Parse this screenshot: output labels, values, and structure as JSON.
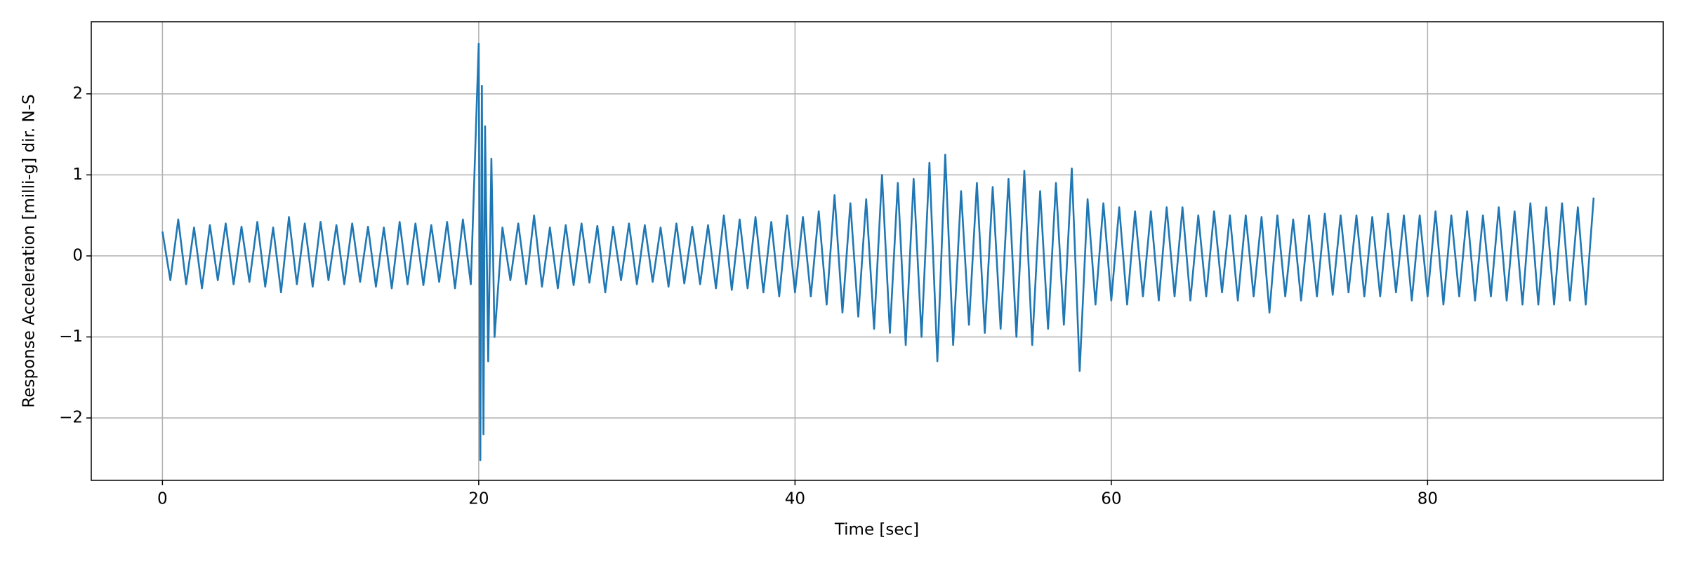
{
  "chart_data": {
    "type": "line",
    "xlabel": "Time [sec]",
    "ylabel": "Response Acceleration [milli-g] dir. N-S",
    "xlim": [
      -4.5,
      94.9
    ],
    "ylim": [
      -2.77,
      2.89
    ],
    "xticks": [
      0,
      20,
      40,
      60,
      80
    ],
    "yticks": [
      {
        "value": -2,
        "label": "−2"
      },
      {
        "value": -1,
        "label": "−1"
      },
      0,
      1,
      2
    ],
    "grid": true,
    "series": [
      {
        "color": "#1f77b4",
        "x": [
          0,
          0.5,
          1,
          1.5,
          2,
          2.5,
          3,
          3.5,
          4,
          4.5,
          5,
          5.5,
          6,
          6.5,
          7,
          7.5,
          8,
          8.5,
          9,
          9.5,
          10,
          10.5,
          11,
          11.5,
          12,
          12.5,
          13,
          13.5,
          14,
          14.5,
          15,
          15.5,
          16,
          16.5,
          17,
          17.5,
          18,
          18.5,
          19,
          19.5,
          20,
          20.1,
          20.2,
          20.3,
          20.4,
          20.6,
          20.8,
          21,
          21.5,
          22,
          22.5,
          23,
          23.5,
          24,
          24.5,
          25,
          25.5,
          26,
          26.5,
          27,
          27.5,
          28,
          28.5,
          29,
          29.5,
          30,
          30.5,
          31,
          31.5,
          32,
          32.5,
          33,
          33.5,
          34,
          34.5,
          35,
          35.5,
          36,
          36.5,
          37,
          37.5,
          38,
          38.5,
          39,
          39.5,
          40,
          40.5,
          41,
          41.5,
          42,
          42.5,
          43,
          43.5,
          44,
          44.5,
          45,
          45.5,
          46,
          46.5,
          47,
          47.5,
          48,
          48.5,
          49,
          49.5,
          50,
          50.5,
          51,
          51.5,
          52,
          52.5,
          53,
          53.5,
          54,
          54.5,
          55,
          55.5,
          56,
          56.5,
          57,
          57.5,
          58,
          58.5,
          59,
          59.5,
          60,
          60.5,
          61,
          61.5,
          62,
          62.5,
          63,
          63.5,
          64,
          64.5,
          65,
          65.5,
          66,
          66.5,
          67,
          67.5,
          68,
          68.5,
          69,
          69.5,
          70,
          70.5,
          71,
          71.5,
          72,
          72.5,
          73,
          73.5,
          74,
          74.5,
          75,
          75.5,
          76,
          76.5,
          77,
          77.5,
          78,
          78.5,
          79,
          79.5,
          80,
          80.5,
          81,
          81.5,
          82,
          82.5,
          83,
          83.5,
          84,
          84.5,
          85,
          85.5,
          86,
          86.5,
          87,
          87.5,
          88,
          88.5,
          89,
          89.5,
          90,
          90.5
        ],
        "values": [
          0.3,
          -0.3,
          0.45,
          -0.35,
          0.35,
          -0.4,
          0.38,
          -0.3,
          0.4,
          -0.35,
          0.36,
          -0.32,
          0.42,
          -0.38,
          0.35,
          -0.45,
          0.48,
          -0.35,
          0.4,
          -0.38,
          0.42,
          -0.3,
          0.38,
          -0.35,
          0.4,
          -0.32,
          0.36,
          -0.38,
          0.35,
          -0.4,
          0.42,
          -0.35,
          0.4,
          -0.36,
          0.38,
          -0.32,
          0.42,
          -0.4,
          0.45,
          -0.35,
          2.62,
          -2.52,
          2.1,
          -2.2,
          1.6,
          -1.3,
          1.2,
          -1.0,
          0.35,
          -0.3,
          0.4,
          -0.35,
          0.5,
          -0.38,
          0.35,
          -0.4,
          0.38,
          -0.36,
          0.4,
          -0.33,
          0.37,
          -0.45,
          0.36,
          -0.3,
          0.4,
          -0.35,
          0.38,
          -0.32,
          0.35,
          -0.38,
          0.4,
          -0.34,
          0.36,
          -0.35,
          0.38,
          -0.4,
          0.5,
          -0.42,
          0.45,
          -0.4,
          0.48,
          -0.45,
          0.42,
          -0.5,
          0.5,
          -0.45,
          0.48,
          -0.5,
          0.55,
          -0.6,
          0.75,
          -0.7,
          0.65,
          -0.75,
          0.7,
          -0.9,
          1.0,
          -0.95,
          0.9,
          -1.1,
          0.95,
          -1.0,
          1.15,
          -1.3,
          1.25,
          -1.1,
          0.8,
          -0.85,
          0.9,
          -0.95,
          0.85,
          -0.9,
          0.95,
          -1.0,
          1.05,
          -1.1,
          0.8,
          -0.9,
          0.9,
          -0.85,
          1.08,
          -1.42,
          0.7,
          -0.6,
          0.65,
          -0.55,
          0.6,
          -0.6,
          0.55,
          -0.5,
          0.55,
          -0.55,
          0.6,
          -0.5,
          0.6,
          -0.55,
          0.5,
          -0.5,
          0.55,
          -0.45,
          0.5,
          -0.55,
          0.5,
          -0.5,
          0.48,
          -0.7,
          0.5,
          -0.5,
          0.45,
          -0.55,
          0.5,
          -0.5,
          0.52,
          -0.48,
          0.5,
          -0.45,
          0.5,
          -0.5,
          0.48,
          -0.5,
          0.52,
          -0.45,
          0.5,
          -0.55,
          0.5,
          -0.5,
          0.55,
          -0.6,
          0.5,
          -0.5,
          0.55,
          -0.55,
          0.5,
          -0.5,
          0.6,
          -0.55,
          0.55,
          -0.6,
          0.65,
          -0.6,
          0.6,
          -0.6,
          0.65,
          -0.55,
          0.6,
          -0.6,
          0.72
        ]
      }
    ]
  }
}
